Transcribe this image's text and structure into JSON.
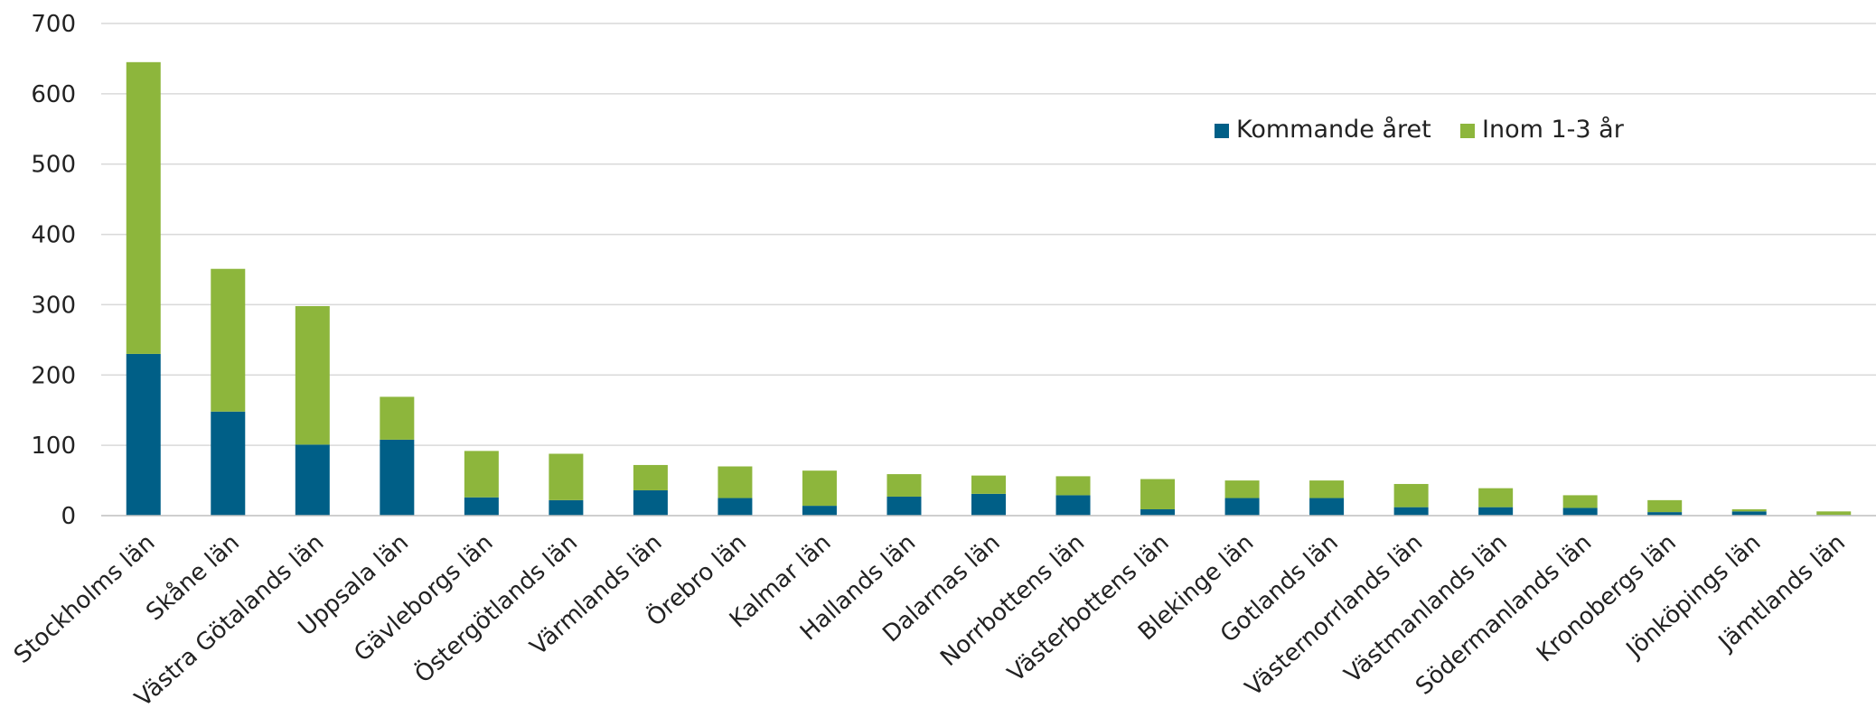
{
  "chart_data": {
    "type": "bar",
    "stacked": true,
    "categories": [
      "Stockholms län",
      "Skåne län",
      "Västra Götalands län",
      "Uppsala län",
      "Gävleborgs län",
      "Östergötlands län",
      "Värmlands län",
      "Örebro län",
      "Kalmar län",
      "Hallands län",
      "Dalarnas län",
      "Norrbottens län",
      "Västerbottens län",
      "Blekinge län",
      "Gotlands län",
      "Västernorrlands län",
      "Västmanlands län",
      "Södermanlands län",
      "Kronobergs län",
      "Jönköpings län",
      "Jämtlands län"
    ],
    "series": [
      {
        "name": "Kommande året",
        "color": "#005f87",
        "values": [
          230,
          148,
          101,
          108,
          26,
          22,
          36,
          25,
          14,
          27,
          31,
          29,
          9,
          25,
          25,
          12,
          12,
          11,
          5,
          6,
          1
        ]
      },
      {
        "name": "Inom 1-3 år",
        "color": "#8db63c",
        "values": [
          415,
          203,
          197,
          61,
          66,
          66,
          36,
          45,
          50,
          32,
          26,
          27,
          43,
          25,
          25,
          33,
          27,
          18,
          17,
          3,
          5
        ]
      }
    ],
    "ylim": [
      0,
      700
    ],
    "yticks": [
      0,
      100,
      200,
      300,
      400,
      500,
      600,
      700
    ],
    "title": "",
    "xlabel": "",
    "ylabel": "",
    "grid": true,
    "legend_position": "top-right"
  }
}
